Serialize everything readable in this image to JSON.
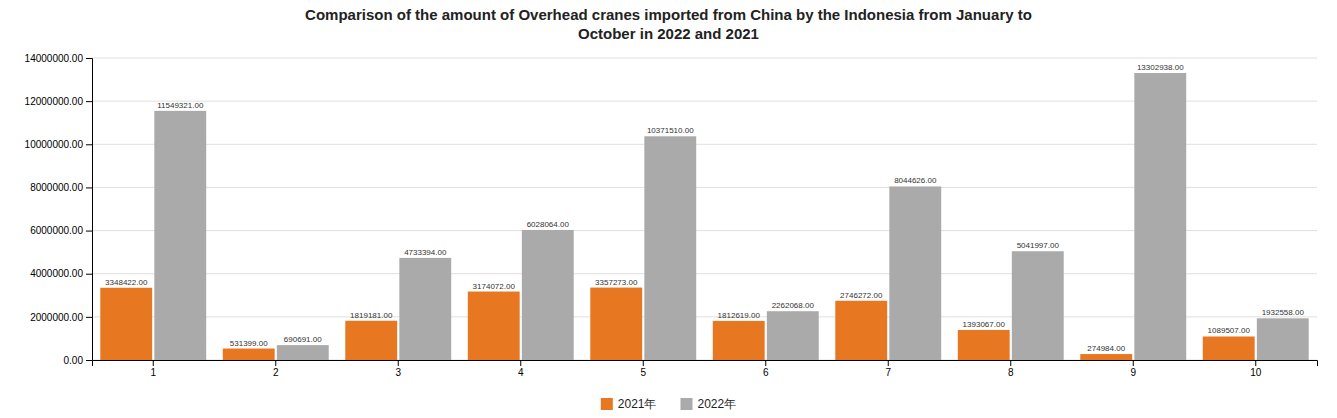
{
  "chart_data": {
    "type": "bar",
    "title": "Comparison of the amount of Overhead cranes imported from China by the Indonesia from January to\nOctober in 2022 and 2021",
    "categories": [
      "1",
      "2",
      "3",
      "4",
      "5",
      "6",
      "7",
      "8",
      "9",
      "10"
    ],
    "series": [
      {
        "name": "2021年",
        "color": "#E87722",
        "values": [
          3348422,
          531399,
          1819181,
          3174072,
          3357273,
          1812619,
          2746272,
          1393067,
          274984,
          1089507
        ],
        "value_labels": [
          "3348422.00",
          "531399.00",
          "1819181.00",
          "3174072.00",
          "3357273.00",
          "1812619.00",
          "2746272.00",
          "1393067.00",
          "274984.00",
          "1089507.00"
        ]
      },
      {
        "name": "2022年",
        "color": "#AAAAAA",
        "values": [
          11549321,
          690691,
          4733394,
          6028064,
          10371510,
          2262068,
          8044626,
          5041997,
          13302938,
          1932558
        ],
        "value_labels": [
          "11549321.00",
          "690691.00",
          "4733394.00",
          "6028064.00",
          "10371510.00",
          "2262068.00",
          "8044626.00",
          "5041997.00",
          "13302938.00",
          "1932558.00"
        ]
      }
    ],
    "ylim": [
      0,
      14000000
    ],
    "yticks": [
      {
        "value": 0,
        "label": "0.00"
      },
      {
        "value": 2000000,
        "label": "2000000.00"
      },
      {
        "value": 4000000,
        "label": "4000000.00"
      },
      {
        "value": 6000000,
        "label": "6000000.00"
      },
      {
        "value": 8000000,
        "label": "8000000.00"
      },
      {
        "value": 10000000,
        "label": "10000000.00"
      },
      {
        "value": 12000000,
        "label": "12000000.00"
      },
      {
        "value": 14000000,
        "label": "14000000.00"
      }
    ],
    "grid": true,
    "legend": "bottom",
    "data_labels": true
  }
}
